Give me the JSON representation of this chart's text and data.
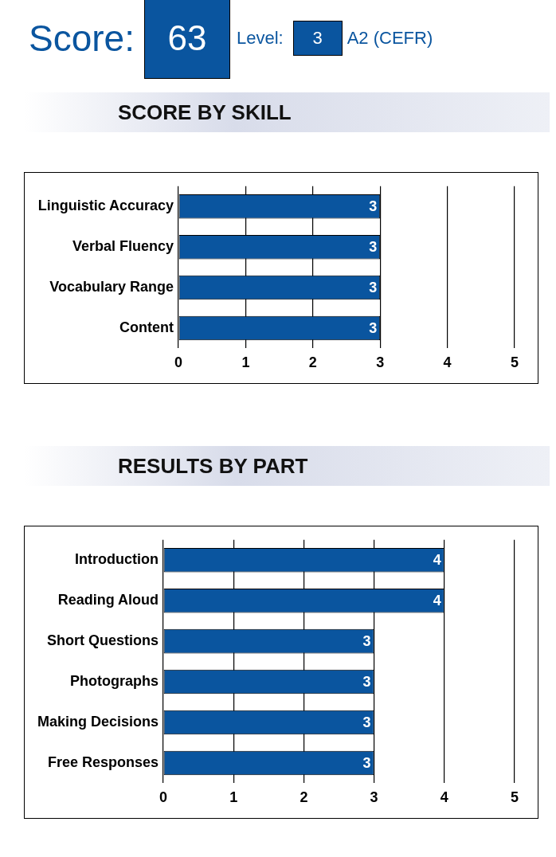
{
  "chart_data": [
    {
      "type": "other",
      "annotations": [
        "Score:",
        "63",
        "Level:",
        "3",
        "A2 (CEFR)"
      ]
    },
    {
      "type": "bar",
      "orientation": "horizontal",
      "title": "SCORE BY SKILL",
      "categories": [
        "Linguistic Accuracy",
        "Verbal Fluency",
        "Vocabulary Range",
        "Content"
      ],
      "values": [
        3,
        3,
        3,
        3
      ],
      "color": "#0a559f",
      "xlim": [
        0,
        5
      ],
      "xticks": [
        0,
        1,
        2,
        3,
        4,
        5
      ],
      "grid": "x",
      "data_labels": true
    },
    {
      "type": "bar",
      "orientation": "horizontal",
      "title": "RESULTS BY PART",
      "categories": [
        "Introduction",
        "Reading Aloud",
        "Short Questions",
        "Photographs",
        "Making Decisions",
        "Free Responses"
      ],
      "values": [
        4,
        4,
        3,
        3,
        3,
        3
      ],
      "color": "#0a559f",
      "xlim": [
        0,
        5
      ],
      "xticks": [
        0,
        1,
        2,
        3,
        4,
        5
      ],
      "grid": "x",
      "data_labels": true
    }
  ]
}
